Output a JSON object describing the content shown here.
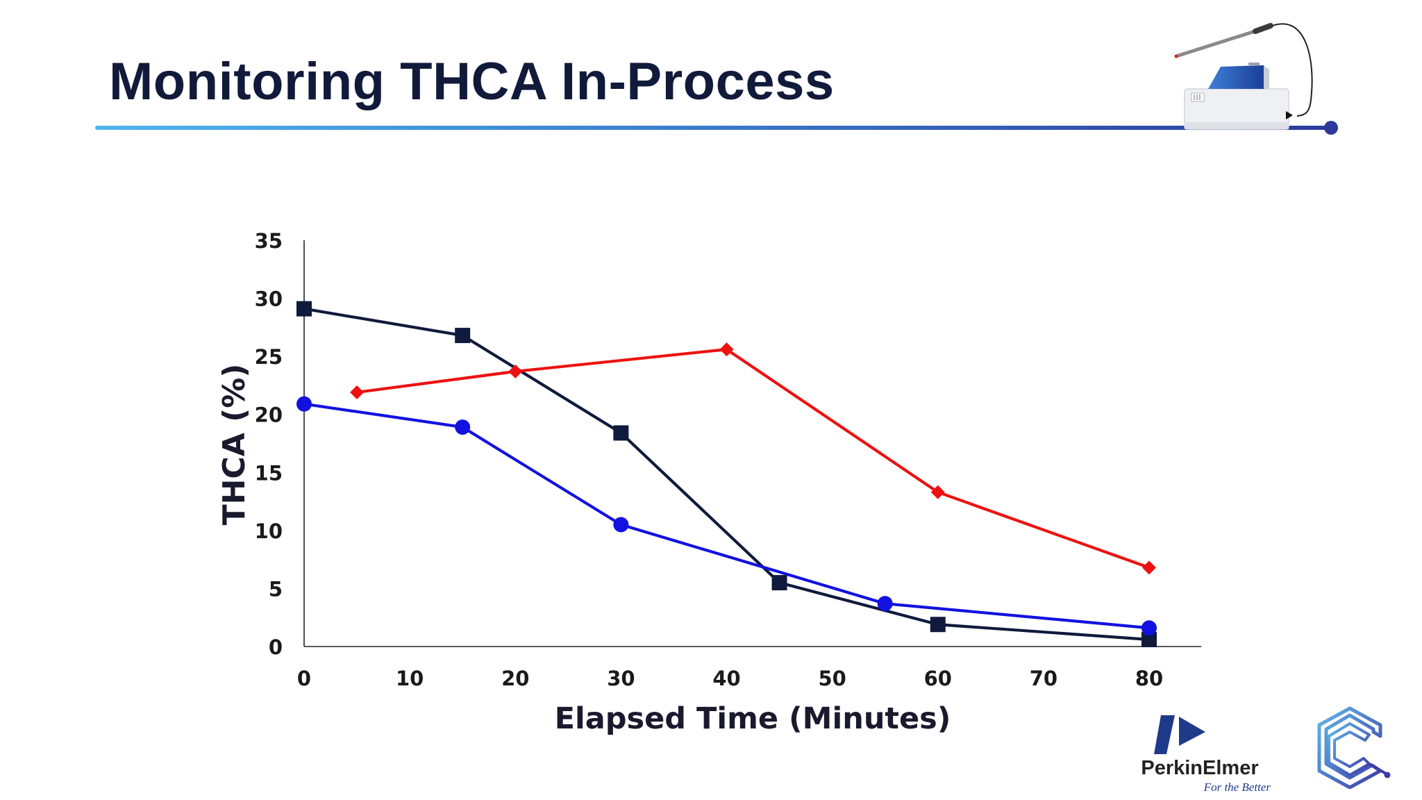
{
  "slide": {
    "title": "Monitoring THCA In-Process"
  },
  "logos": {
    "perkinelmer_name": "PerkinElmer",
    "perkinelmer_tagline": "For the Better",
    "perkinelmer_icon": "perkinelmer-p-icon",
    "corner_icon": "circuit-c-icon",
    "device_icon": "analyzer-with-probe-icon"
  },
  "colors": {
    "title": "#111a3a",
    "navy_series": "#0f1a3c",
    "red_series": "#ee1111",
    "blue_series": "#1212e0",
    "rule_start": "#4fb6ec",
    "rule_end": "#2b3b9c"
  },
  "chart_data": {
    "type": "line",
    "title": "",
    "xlabel": "Elapsed Time (Minutes)",
    "ylabel": "THCA (%)",
    "xlim": [
      0,
      85
    ],
    "ylim": [
      0,
      35
    ],
    "xticks": [
      0,
      10,
      20,
      30,
      40,
      50,
      60,
      70,
      80
    ],
    "yticks": [
      0,
      5,
      10,
      15,
      20,
      25,
      30,
      35
    ],
    "grid": false,
    "legend": "none",
    "series": [
      {
        "marker": "square",
        "color": "#0f1a3c",
        "x": [
          0,
          15,
          30,
          45,
          60,
          80
        ],
        "y": [
          29.1,
          26.8,
          18.4,
          5.5,
          1.9,
          0.6
        ]
      },
      {
        "marker": "diamond",
        "color": "#ee1111",
        "x": [
          5,
          20,
          40,
          60,
          80
        ],
        "y": [
          21.9,
          23.7,
          25.6,
          13.3,
          6.8
        ]
      },
      {
        "marker": "circle",
        "color": "#1212e0",
        "x": [
          0,
          15,
          30,
          55,
          80
        ],
        "y": [
          20.9,
          18.9,
          10.5,
          3.7,
          1.6
        ]
      }
    ]
  }
}
